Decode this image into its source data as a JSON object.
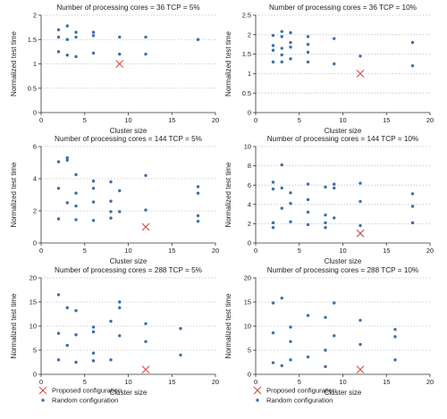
{
  "chart_data": [
    {
      "type": "scatter",
      "title": "Number of processing cores = 36 TCP = 5%",
      "xlabel": "Cluster size",
      "ylabel": "Normalized test time",
      "xlim": [
        0,
        20
      ],
      "ylim": [
        0,
        2
      ],
      "xticks": [
        0,
        5,
        10,
        15,
        20
      ],
      "yticks": [
        0,
        0.5,
        1,
        1.5,
        2
      ],
      "grid": "horizontal dotted",
      "series": [
        {
          "name": "Random configuration",
          "marker": "dot",
          "points": [
            [
              2,
              1.7
            ],
            [
              2,
              1.55
            ],
            [
              2,
              1.25
            ],
            [
              3,
              1.78
            ],
            [
              3,
              1.5
            ],
            [
              3,
              1.18
            ],
            [
              4,
              1.65
            ],
            [
              4,
              1.55
            ],
            [
              4,
              1.15
            ],
            [
              6,
              1.65
            ],
            [
              6,
              1.58
            ],
            [
              6,
              1.22
            ],
            [
              9,
              1.55
            ],
            [
              9,
              1.2
            ],
            [
              12,
              1.55
            ],
            [
              12,
              1.2
            ],
            [
              18,
              1.5
            ]
          ]
        },
        {
          "name": "Proposed configuration",
          "marker": "x",
          "points": [
            [
              9,
              1
            ]
          ]
        }
      ]
    },
    {
      "type": "scatter",
      "title": "Number of processing cores = 36 TCP = 10%",
      "xlabel": "Cluster size",
      "ylabel": "Normalized test time",
      "xlim": [
        0,
        20
      ],
      "ylim": [
        0,
        2.5
      ],
      "xticks": [
        0,
        5,
        10,
        15,
        20
      ],
      "yticks": [
        0,
        0.5,
        1,
        1.5,
        2,
        2.5
      ],
      "grid": "horizontal dotted",
      "series": [
        {
          "name": "Random configuration",
          "marker": "dot",
          "points": [
            [
              2,
              1.98
            ],
            [
              2,
              1.72
            ],
            [
              2,
              1.6
            ],
            [
              2,
              1.3
            ],
            [
              3,
              2.08
            ],
            [
              3,
              1.95
            ],
            [
              3,
              1.65
            ],
            [
              3,
              1.48
            ],
            [
              3,
              1.3
            ],
            [
              4,
              2.05
            ],
            [
              4,
              1.8
            ],
            [
              4,
              1.68
            ],
            [
              4,
              1.38
            ],
            [
              6,
              1.95
            ],
            [
              6,
              1.75
            ],
            [
              6,
              1.55
            ],
            [
              6,
              1.3
            ],
            [
              9,
              1.9
            ],
            [
              9,
              1.25
            ],
            [
              12,
              1.45
            ],
            [
              18,
              1.8
            ],
            [
              18,
              1.2
            ]
          ]
        },
        {
          "name": "Proposed configuration",
          "marker": "x",
          "points": [
            [
              12,
              1
            ]
          ]
        }
      ]
    },
    {
      "type": "scatter",
      "title": "Number of processing cores = 144 TCP = 5%",
      "xlabel": "Cluster size",
      "ylabel": "Normalized test time",
      "xlim": [
        0,
        20
      ],
      "ylim": [
        0,
        6
      ],
      "xticks": [
        0,
        5,
        10,
        15,
        20
      ],
      "yticks": [
        0,
        2,
        4,
        6
      ],
      "grid": "horizontal dotted",
      "series": [
        {
          "name": "Random configuration",
          "marker": "dot",
          "points": [
            [
              2,
              5.05
            ],
            [
              2,
              3.4
            ],
            [
              2,
              1.5
            ],
            [
              3,
              5.3
            ],
            [
              3,
              5.15
            ],
            [
              3,
              2.5
            ],
            [
              4,
              4.25
            ],
            [
              4,
              3.1
            ],
            [
              4,
              2.3
            ],
            [
              4,
              1.45
            ],
            [
              6,
              3.85
            ],
            [
              6,
              3.4
            ],
            [
              6,
              2.55
            ],
            [
              6,
              1.4
            ],
            [
              8,
              3.8
            ],
            [
              8,
              2.6
            ],
            [
              8,
              1.95
            ],
            [
              8,
              1.55
            ],
            [
              9,
              3.25
            ],
            [
              9,
              1.95
            ],
            [
              12,
              4.2
            ],
            [
              12,
              2.05
            ],
            [
              18,
              3.5
            ],
            [
              18,
              3.1
            ],
            [
              18,
              1.7
            ],
            [
              18,
              1.35
            ]
          ]
        },
        {
          "name": "Proposed configuration",
          "marker": "x",
          "points": [
            [
              12,
              1
            ]
          ]
        }
      ]
    },
    {
      "type": "scatter",
      "title": "Number of processing cores = 144 TCP = 10%",
      "xlabel": "Cluster size",
      "ylabel": "Normalized test time",
      "xlim": [
        0,
        20
      ],
      "ylim": [
        0,
        10
      ],
      "xticks": [
        0,
        5,
        10,
        15,
        20
      ],
      "yticks": [
        0,
        2,
        4,
        6,
        8,
        10
      ],
      "grid": "horizontal dotted",
      "series": [
        {
          "name": "Random configuration",
          "marker": "dot",
          "points": [
            [
              2,
              6.3
            ],
            [
              2,
              5.6
            ],
            [
              2,
              2.1
            ],
            [
              2,
              1.6
            ],
            [
              3,
              8.1
            ],
            [
              3,
              5.7
            ],
            [
              3,
              3.6
            ],
            [
              4,
              5.2
            ],
            [
              4,
              4.1
            ],
            [
              4,
              2.2
            ],
            [
              6,
              6.1
            ],
            [
              6,
              4.5
            ],
            [
              6,
              3.2
            ],
            [
              6,
              1.9
            ],
            [
              8,
              5.8
            ],
            [
              8,
              2.9
            ],
            [
              8,
              2.1
            ],
            [
              8,
              1.6
            ],
            [
              9,
              6.1
            ],
            [
              9,
              5.7
            ],
            [
              9,
              2.6
            ],
            [
              12,
              6.2
            ],
            [
              12,
              4.3
            ],
            [
              12,
              1.8
            ],
            [
              18,
              5.1
            ],
            [
              18,
              3.8
            ],
            [
              18,
              2.1
            ]
          ]
        },
        {
          "name": "Proposed configuration",
          "marker": "x",
          "points": [
            [
              12,
              1
            ]
          ]
        }
      ]
    },
    {
      "type": "scatter",
      "title": "Number of processing cores = 288 TCP = 5%",
      "xlabel": "Cluster size",
      "ylabel": "Normalized test time",
      "xlim": [
        0,
        20
      ],
      "ylim": [
        0,
        20
      ],
      "xticks": [
        0,
        5,
        10,
        15,
        20
      ],
      "yticks": [
        0,
        5,
        10,
        15,
        20
      ],
      "grid": "horizontal dotted",
      "series": [
        {
          "name": "Random configuration",
          "marker": "dot",
          "points": [
            [
              2,
              16.5
            ],
            [
              2,
              8.5
            ],
            [
              2,
              3.0
            ],
            [
              3,
              13.8
            ],
            [
              3,
              6.0
            ],
            [
              4,
              13.2
            ],
            [
              4,
              8.2
            ],
            [
              4,
              2.5
            ],
            [
              6,
              9.8
            ],
            [
              6,
              8.8
            ],
            [
              6,
              4.4
            ],
            [
              6,
              2.8
            ],
            [
              8,
              11.0
            ],
            [
              8,
              3.0
            ],
            [
              9,
              15.0
            ],
            [
              9,
              13.8
            ],
            [
              9,
              8.0
            ],
            [
              12,
              10.5
            ],
            [
              12,
              6.8
            ],
            [
              16,
              9.5
            ],
            [
              16,
              4.0
            ]
          ]
        },
        {
          "name": "Proposed configuration",
          "marker": "x",
          "points": [
            [
              12,
              1
            ]
          ]
        }
      ]
    },
    {
      "type": "scatter",
      "title": "Number of processing cores = 288 TCP = 10%",
      "xlabel": "Cluster size",
      "ylabel": "Normalized test time",
      "xlim": [
        0,
        20
      ],
      "ylim": [
        0,
        20
      ],
      "xticks": [
        0,
        5,
        10,
        15,
        20
      ],
      "yticks": [
        0,
        5,
        10,
        15,
        20
      ],
      "grid": "horizontal dotted",
      "series": [
        {
          "name": "Random configuration",
          "marker": "dot",
          "points": [
            [
              2,
              14.8
            ],
            [
              2,
              8.6
            ],
            [
              2,
              2.4
            ],
            [
              3,
              15.8
            ],
            [
              3,
              1.8
            ],
            [
              4,
              9.8
            ],
            [
              4,
              6.8
            ],
            [
              4,
              3.0
            ],
            [
              6,
              12.2
            ],
            [
              6,
              3.6
            ],
            [
              8,
              11.8
            ],
            [
              8,
              5.0
            ],
            [
              8,
              1.6
            ],
            [
              9,
              14.8
            ],
            [
              9,
              8.0
            ],
            [
              12,
              11.2
            ],
            [
              12,
              6.2
            ],
            [
              16,
              9.3
            ],
            [
              16,
              7.8
            ],
            [
              16,
              3.0
            ]
          ]
        },
        {
          "name": "Proposed configuration",
          "marker": "x",
          "points": [
            [
              12,
              1
            ]
          ]
        }
      ]
    }
  ],
  "legends": [
    {
      "items": [
        {
          "marker": "x",
          "label": "Proposed configuration"
        },
        {
          "marker": "dot",
          "label": "Random configuration"
        }
      ]
    },
    {
      "items": [
        {
          "marker": "x",
          "label": "Proposed configuration"
        },
        {
          "marker": "dot",
          "label": "Random configuration"
        }
      ]
    }
  ],
  "colors": {
    "dot": "#3d6fa8",
    "cross": "#d24b4b",
    "axis": "#333333",
    "grid": "#b5b5b5"
  }
}
